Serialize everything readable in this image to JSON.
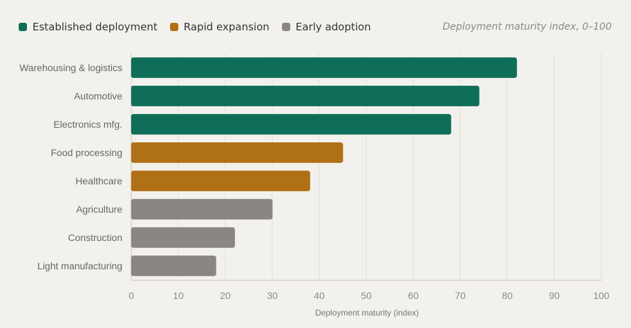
{
  "chart_data": {
    "type": "bar",
    "orientation": "horizontal",
    "subtitle": "Deployment maturity index, 0–100",
    "xlabel": "Deployment maturity (index)",
    "ylabel": "",
    "xlim": [
      0,
      100
    ],
    "ticks": [
      "0",
      "10",
      "20",
      "30",
      "40",
      "50",
      "60",
      "70",
      "80",
      "90",
      "100"
    ],
    "grid": "vertical",
    "legend_position": "top-left",
    "legend": [
      {
        "label": "Established deployment",
        "color": "#0f6e57"
      },
      {
        "label": "Rapid expansion",
        "color": "#b07015"
      },
      {
        "label": "Early adoption",
        "color": "#8a8682"
      }
    ],
    "categories": [
      "Warehousing & logistics",
      "Automotive",
      "Electronics mfg.",
      "Food processing",
      "Healthcare",
      "Agriculture",
      "Construction",
      "Light manufacturing"
    ],
    "values": [
      82,
      74,
      68,
      45,
      38,
      30,
      22,
      18
    ],
    "groups": [
      0,
      0,
      0,
      1,
      1,
      2,
      2,
      2
    ]
  }
}
